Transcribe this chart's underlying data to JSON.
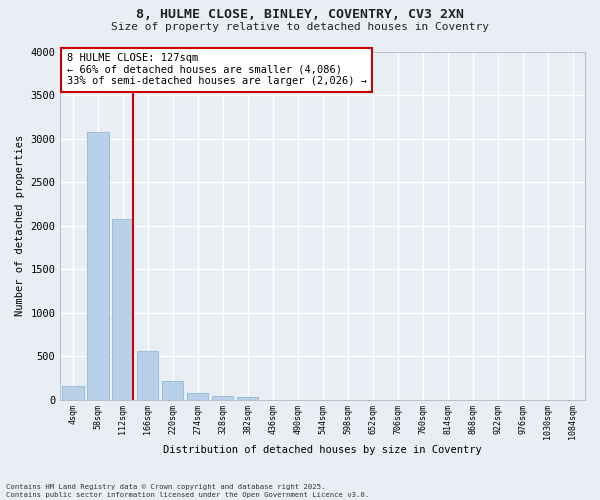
{
  "title_line1": "8, HULME CLOSE, BINLEY, COVENTRY, CV3 2XN",
  "title_line2": "Size of property relative to detached houses in Coventry",
  "xlabel": "Distribution of detached houses by size in Coventry",
  "ylabel": "Number of detached properties",
  "categories": [
    "4sqm",
    "58sqm",
    "112sqm",
    "166sqm",
    "220sqm",
    "274sqm",
    "328sqm",
    "382sqm",
    "436sqm",
    "490sqm",
    "544sqm",
    "598sqm",
    "652sqm",
    "706sqm",
    "760sqm",
    "814sqm",
    "868sqm",
    "922sqm",
    "976sqm",
    "1030sqm",
    "1084sqm"
  ],
  "values": [
    160,
    3080,
    2080,
    560,
    210,
    75,
    40,
    30,
    0,
    0,
    0,
    0,
    0,
    0,
    0,
    0,
    0,
    0,
    0,
    0,
    0
  ],
  "bar_color": "#b8d0e8",
  "bar_edge_color": "#8ab0d0",
  "background_color": "#e8eef4",
  "grid_color": "#ffffff",
  "vline_x": 2.4,
  "vline_color": "#cc0000",
  "annotation_text": "8 HULME CLOSE: 127sqm\n← 66% of detached houses are smaller (4,086)\n33% of semi-detached houses are larger (2,026) →",
  "annotation_box_color": "#cc0000",
  "ylim": [
    0,
    4000
  ],
  "yticks": [
    0,
    500,
    1000,
    1500,
    2000,
    2500,
    3000,
    3500,
    4000
  ],
  "footer_line1": "Contains HM Land Registry data © Crown copyright and database right 2025.",
  "footer_line2": "Contains public sector information licensed under the Open Government Licence v3.0."
}
